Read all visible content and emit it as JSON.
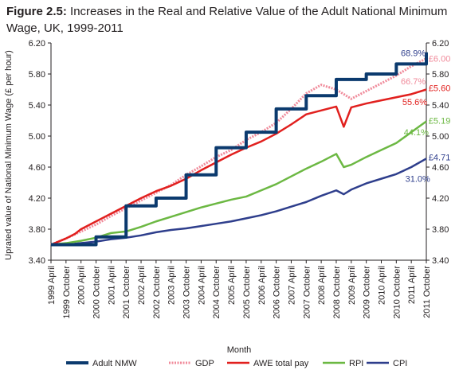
{
  "title": {
    "prefix": "Figure 2.5:",
    "text": " Increases in the Real and Relative Value of the Adult National Minimum Wage, UK, 1999-2011"
  },
  "chart_data": {
    "type": "line",
    "title": "Figure 2.5: Increases in the Real and Relative Value of the Adult National Minimum Wage, UK, 1999-2011",
    "xlabel": "Month",
    "ylabel": "Uprated value of National Minimum Wage (£ per hour)",
    "ylim": [
      3.4,
      6.2
    ],
    "yticks": [
      "3.40",
      "3.80",
      "4.20",
      "4.60",
      "5.00",
      "5.40",
      "5.80",
      "6.20"
    ],
    "x_start": 0,
    "x_end": 25,
    "x_ticks": [
      "1999 April",
      "1999 October",
      "2000 April",
      "2000 October",
      "2001 April",
      "2001 October",
      "2002 April",
      "2002 October",
      "2003 April",
      "2003 October",
      "2004 April",
      "2004 October",
      "2005 April",
      "2005 October",
      "2006 April",
      "2006 October",
      "2007 April",
      "2007 October",
      "2008 April",
      "2008 October",
      "2009 April",
      "2009 October",
      "2010 April",
      "2010 October",
      "2011 April",
      "2011 October"
    ],
    "grid": false,
    "legend_position": "bottom",
    "series": [
      {
        "name": "Adult NMW",
        "color": "#0b3a6e",
        "style": "step",
        "points": [
          [
            0,
            3.6
          ],
          [
            1,
            3.6
          ],
          [
            2,
            3.6
          ],
          [
            3,
            3.7
          ],
          [
            4,
            3.7
          ],
          [
            5,
            4.1
          ],
          [
            6,
            4.1
          ],
          [
            7,
            4.2
          ],
          [
            8,
            4.2
          ],
          [
            9,
            4.5
          ],
          [
            10,
            4.5
          ],
          [
            11,
            4.85
          ],
          [
            12,
            4.85
          ],
          [
            13,
            5.05
          ],
          [
            14,
            5.05
          ],
          [
            15,
            5.35
          ],
          [
            16,
            5.35
          ],
          [
            17,
            5.52
          ],
          [
            18,
            5.52
          ],
          [
            19,
            5.73
          ],
          [
            20,
            5.73
          ],
          [
            21,
            5.8
          ],
          [
            22,
            5.8
          ],
          [
            23,
            5.93
          ],
          [
            24,
            5.93
          ],
          [
            25,
            6.08
          ]
        ]
      },
      {
        "name": "GDP",
        "color": "#f08a9a",
        "style": "dotted",
        "points": [
          [
            0,
            3.6
          ],
          [
            1,
            3.68
          ],
          [
            2,
            3.77
          ],
          [
            3,
            3.86
          ],
          [
            4,
            3.97
          ],
          [
            5,
            4.07
          ],
          [
            6,
            4.17
          ],
          [
            7,
            4.27
          ],
          [
            8,
            4.37
          ],
          [
            9,
            4.5
          ],
          [
            10,
            4.61
          ],
          [
            11,
            4.73
          ],
          [
            12,
            4.82
          ],
          [
            13,
            4.95
          ],
          [
            14,
            5.05
          ],
          [
            15,
            5.17
          ],
          [
            16,
            5.35
          ],
          [
            17,
            5.55
          ],
          [
            18,
            5.66
          ],
          [
            19,
            5.6
          ],
          [
            20,
            5.48
          ],
          [
            21,
            5.58
          ],
          [
            22,
            5.68
          ],
          [
            23,
            5.78
          ],
          [
            24,
            5.9
          ],
          [
            25,
            6.0
          ]
        ]
      },
      {
        "name": "AWE total pay",
        "color": "#e1201e",
        "style": "solid",
        "points": [
          [
            0,
            3.6
          ],
          [
            1,
            3.68
          ],
          [
            1.6,
            3.74
          ],
          [
            2,
            3.8
          ],
          [
            3,
            3.9
          ],
          [
            4,
            4.0
          ],
          [
            5,
            4.1
          ],
          [
            6,
            4.2
          ],
          [
            7,
            4.29
          ],
          [
            8,
            4.36
          ],
          [
            9,
            4.45
          ],
          [
            10,
            4.56
          ],
          [
            11,
            4.66
          ],
          [
            12,
            4.76
          ],
          [
            13,
            4.85
          ],
          [
            14,
            4.93
          ],
          [
            15,
            5.03
          ],
          [
            16,
            5.15
          ],
          [
            17,
            5.28
          ],
          [
            18,
            5.33
          ],
          [
            19,
            5.38
          ],
          [
            19.5,
            5.12
          ],
          [
            20,
            5.37
          ],
          [
            21,
            5.42
          ],
          [
            22,
            5.46
          ],
          [
            23,
            5.5
          ],
          [
            24,
            5.54
          ],
          [
            25,
            5.6
          ]
        ]
      },
      {
        "name": "RPI",
        "color": "#6cb843",
        "style": "solid",
        "points": [
          [
            0,
            3.6
          ],
          [
            1,
            3.62
          ],
          [
            2,
            3.65
          ],
          [
            3,
            3.69
          ],
          [
            4,
            3.75
          ],
          [
            5,
            3.77
          ],
          [
            6,
            3.83
          ],
          [
            7,
            3.9
          ],
          [
            8,
            3.96
          ],
          [
            9,
            4.02
          ],
          [
            10,
            4.08
          ],
          [
            11,
            4.13
          ],
          [
            12,
            4.18
          ],
          [
            13,
            4.22
          ],
          [
            14,
            4.3
          ],
          [
            15,
            4.38
          ],
          [
            16,
            4.48
          ],
          [
            17,
            4.58
          ],
          [
            18,
            4.67
          ],
          [
            19,
            4.77
          ],
          [
            19.5,
            4.6
          ],
          [
            20,
            4.63
          ],
          [
            21,
            4.73
          ],
          [
            22,
            4.82
          ],
          [
            23,
            4.91
          ],
          [
            24,
            5.05
          ],
          [
            25,
            5.19
          ]
        ]
      },
      {
        "name": "CPI",
        "color": "#2e3e8c",
        "style": "solid",
        "points": [
          [
            0,
            3.6
          ],
          [
            1,
            3.6
          ],
          [
            2,
            3.62
          ],
          [
            3,
            3.64
          ],
          [
            4,
            3.67
          ],
          [
            5,
            3.69
          ],
          [
            6,
            3.72
          ],
          [
            7,
            3.76
          ],
          [
            8,
            3.79
          ],
          [
            9,
            3.81
          ],
          [
            10,
            3.84
          ],
          [
            11,
            3.87
          ],
          [
            12,
            3.9
          ],
          [
            13,
            3.94
          ],
          [
            14,
            3.98
          ],
          [
            15,
            4.03
          ],
          [
            16,
            4.09
          ],
          [
            17,
            4.15
          ],
          [
            18,
            4.23
          ],
          [
            19,
            4.3
          ],
          [
            19.5,
            4.25
          ],
          [
            20,
            4.31
          ],
          [
            21,
            4.39
          ],
          [
            22,
            4.45
          ],
          [
            23,
            4.51
          ],
          [
            24,
            4.6
          ],
          [
            25,
            4.71
          ]
        ]
      }
    ],
    "annotations": [
      {
        "text": "68.9%",
        "x": 23.3,
        "y": 6.07,
        "color": "#2e3e8c"
      },
      {
        "text": "£6.00",
        "x": 25.15,
        "y": 6.0,
        "color": "#f08a9a"
      },
      {
        "text": "66.7%",
        "x": 23.3,
        "y": 5.71,
        "color": "#f08a9a"
      },
      {
        "text": "£5.60",
        "x": 25.15,
        "y": 5.62,
        "color": "#e1201e"
      },
      {
        "text": "55.6%",
        "x": 23.4,
        "y": 5.44,
        "color": "#e1201e"
      },
      {
        "text": "£5.19",
        "x": 25.15,
        "y": 5.2,
        "color": "#6cb843"
      },
      {
        "text": "44.1%",
        "x": 23.5,
        "y": 5.05,
        "color": "#6cb843"
      },
      {
        "text": "£4.71",
        "x": 25.15,
        "y": 4.73,
        "color": "#2e3e8c"
      },
      {
        "text": "31.0%",
        "x": 23.6,
        "y": 4.45,
        "color": "#2e3e8c"
      }
    ]
  }
}
